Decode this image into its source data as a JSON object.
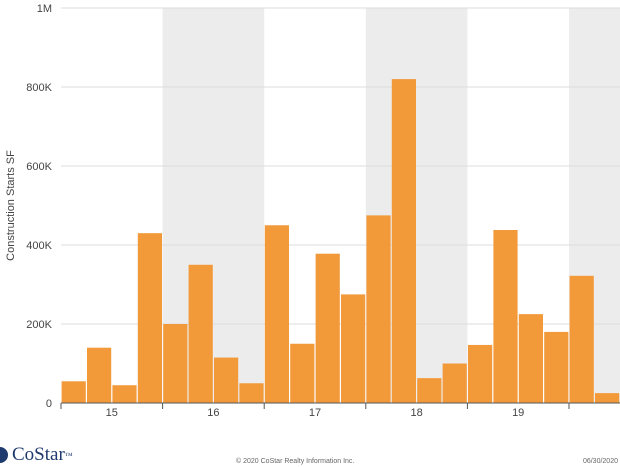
{
  "chart_data": {
    "type": "bar",
    "title": "",
    "xlabel": "",
    "ylabel": "Construction Starts SF",
    "ylim": [
      0,
      1000000
    ],
    "y_ticks": [
      0,
      200000,
      400000,
      600000,
      800000,
      1000000
    ],
    "y_tick_labels": [
      "0",
      "200K",
      "400K",
      "600K",
      "800K",
      "1M"
    ],
    "x_ticks": [
      "15",
      "16",
      "17",
      "18",
      "19"
    ],
    "grid": true,
    "bar_color": "#f29a3a",
    "band_color": "#ececec",
    "categories": [
      "15Q1",
      "15Q2",
      "15Q3",
      "15Q4",
      "16Q1",
      "16Q2",
      "16Q3",
      "16Q4",
      "17Q1",
      "17Q2",
      "17Q3",
      "17Q4",
      "18Q1",
      "18Q2",
      "18Q3",
      "18Q4",
      "19Q1",
      "19Q2",
      "19Q3",
      "19Q4",
      "20Q1",
      "20Q2"
    ],
    "values": [
      55000,
      140000,
      45000,
      430000,
      200000,
      350000,
      115000,
      50000,
      450000,
      150000,
      378000,
      275000,
      475000,
      820000,
      63000,
      100000,
      147000,
      438000,
      225000,
      180000,
      322000,
      25000
    ]
  },
  "footer": {
    "brand": "CoStar",
    "brand_mark": "™",
    "copyright": "© 2020 CoStar Realty Information Inc.",
    "date": "06/30/2020"
  }
}
